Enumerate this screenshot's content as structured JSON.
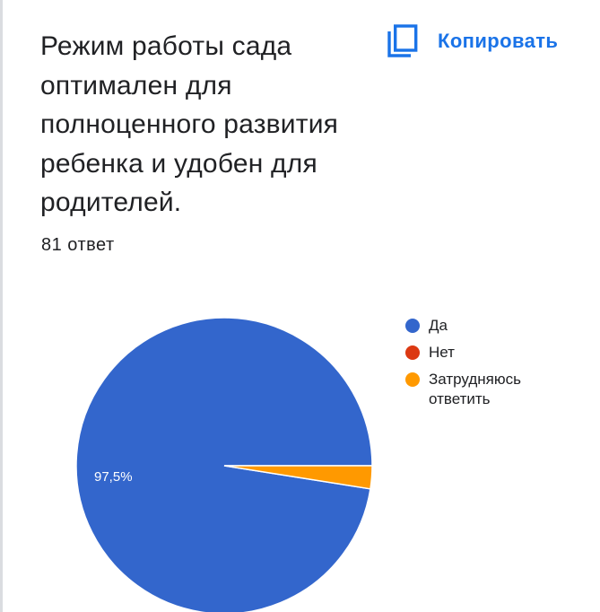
{
  "question": {
    "title": "Режим работы сада оптимален для полноценного развития ребенка и удобен для родителей.",
    "responses": "81 ответ"
  },
  "toolbar": {
    "copy_label": "Копировать",
    "copy_icon": "copy-icon"
  },
  "colors": {
    "accent": "#1a73e8",
    "series": [
      "#3366cc",
      "#dc3912",
      "#ff9900"
    ]
  },
  "chart_data": {
    "type": "pie",
    "categories": [
      "Да",
      "Нет",
      "Затрудняюсь ответить"
    ],
    "values": [
      97.5,
      0,
      2.5
    ],
    "data_labels": [
      "97,5%",
      "",
      ""
    ],
    "legend_position": "right"
  }
}
